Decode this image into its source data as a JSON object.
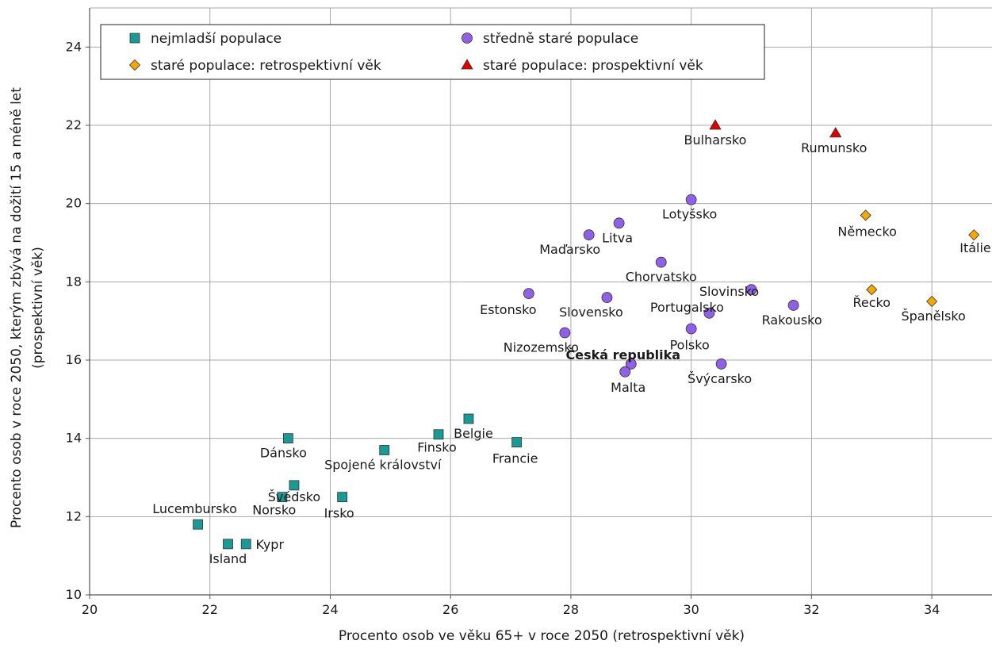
{
  "chart_data": {
    "type": "scatter",
    "title": "",
    "xlabel": "Procento osob ve věku 65+ v roce 2050 (retrospektivní věk)",
    "ylabel_line1": "Procento osob v roce 2050, kterým zbývá na dožití 15 a méně let",
    "ylabel_line2": "(prospektivní věk)",
    "xlim": [
      20,
      35
    ],
    "ylim": [
      10,
      25
    ],
    "xticks": [
      20,
      22,
      24,
      26,
      28,
      30,
      32,
      34
    ],
    "yticks": [
      10,
      12,
      14,
      16,
      18,
      20,
      22,
      24
    ],
    "xtick_labels": [
      "20",
      "22",
      "24",
      "26",
      "28",
      "30",
      "32",
      "34"
    ],
    "ytick_labels": [
      "10",
      "12",
      "14",
      "16",
      "18",
      "20",
      "22",
      "24"
    ],
    "grid": true,
    "legend_position": "top-left",
    "series": [
      {
        "name": "nejmladší populace",
        "marker": "square",
        "color": "#1a9a96",
        "points": [
          {
            "label": "Lucembursko",
            "x": 21.8,
            "y": 11.8
          },
          {
            "label": "Island",
            "x": 22.3,
            "y": 11.3
          },
          {
            "label": "Kypr",
            "x": 22.6,
            "y": 11.3
          },
          {
            "label": "Dánsko",
            "x": 23.3,
            "y": 14.0
          },
          {
            "label": "Švédsko",
            "x": 23.4,
            "y": 12.8
          },
          {
            "label": "Norsko",
            "x": 23.2,
            "y": 12.5
          },
          {
            "label": "Irsko",
            "x": 24.2,
            "y": 12.5
          },
          {
            "label": "Spojené království",
            "x": 24.9,
            "y": 13.7
          },
          {
            "label": "Finsko",
            "x": 25.8,
            "y": 14.1
          },
          {
            "label": "Belgie",
            "x": 26.3,
            "y": 14.5
          },
          {
            "label": "Francie",
            "x": 27.1,
            "y": 13.9
          }
        ]
      },
      {
        "name": "středně staré populace",
        "marker": "circle",
        "color": "#9060e8",
        "points": [
          {
            "label": "Estonsko",
            "x": 27.3,
            "y": 17.7
          },
          {
            "label": "Nizozemsko",
            "x": 27.9,
            "y": 16.7
          },
          {
            "label": "Maďarsko",
            "x": 28.3,
            "y": 19.2
          },
          {
            "label": "Litva",
            "x": 28.8,
            "y": 19.5
          },
          {
            "label": "Slovensko",
            "x": 28.6,
            "y": 17.6
          },
          {
            "label": "Chorvatsko",
            "x": 29.5,
            "y": 18.5
          },
          {
            "label": "Lotyšsko",
            "x": 30.0,
            "y": 20.1
          },
          {
            "label": "Česká republika",
            "x": 29.0,
            "y": 15.9
          },
          {
            "label": "Malta",
            "x": 28.9,
            "y": 15.7
          },
          {
            "label": "Portugalsko",
            "x": 30.3,
            "y": 17.2
          },
          {
            "label": "Polsko",
            "x": 30.0,
            "y": 16.8
          },
          {
            "label": "Slovinsko",
            "x": 31.0,
            "y": 17.8
          },
          {
            "label": "Rakousko",
            "x": 31.7,
            "y": 17.4
          },
          {
            "label": "Švýcarsko",
            "x": 30.5,
            "y": 15.9
          }
        ]
      },
      {
        "name": "staré populace: retrospektivní věk",
        "marker": "diamond",
        "color": "#f5a800",
        "points": [
          {
            "label": "Německo",
            "x": 32.9,
            "y": 19.7
          },
          {
            "label": "Řecko",
            "x": 33.0,
            "y": 17.8
          },
          {
            "label": "Španělsko",
            "x": 34.0,
            "y": 17.5
          },
          {
            "label": "Itálie",
            "x": 34.7,
            "y": 19.2
          }
        ]
      },
      {
        "name": "staré populace: prospektivní věk",
        "marker": "triangle",
        "color": "#e00000",
        "points": [
          {
            "label": "Bulharsko",
            "x": 30.4,
            "y": 22.0
          },
          {
            "label": "Rumunsko",
            "x": 32.4,
            "y": 21.8
          }
        ]
      }
    ]
  }
}
